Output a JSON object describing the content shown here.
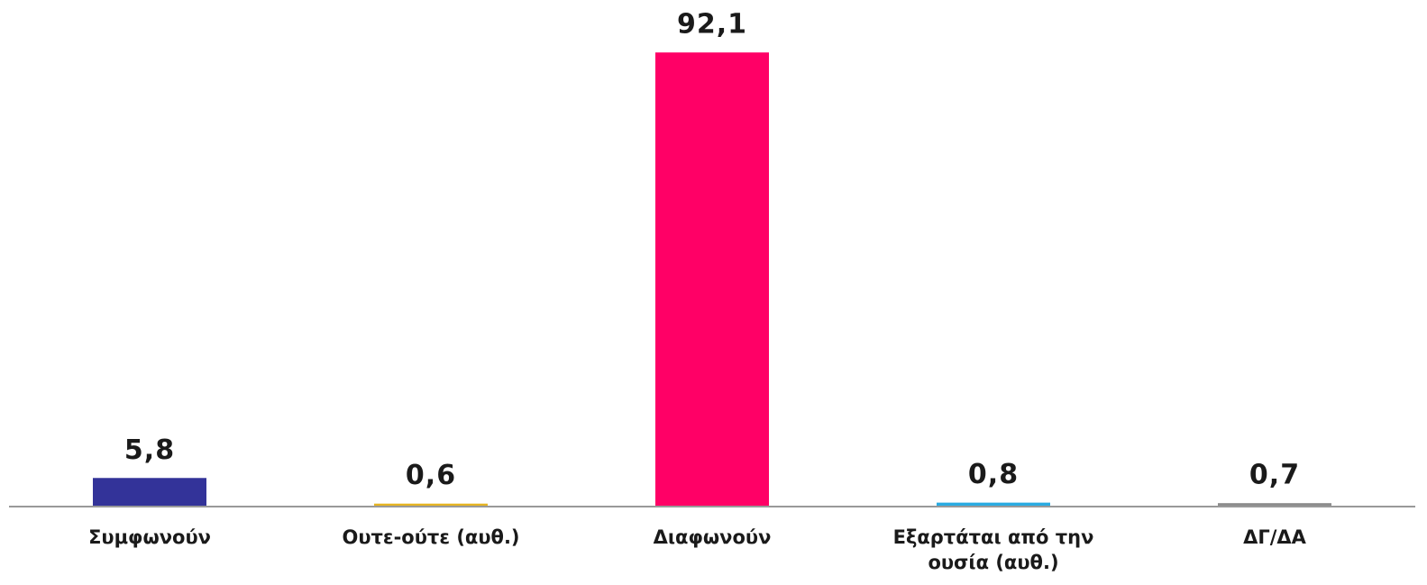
{
  "chart_data": {
    "type": "bar",
    "categories": [
      "Συμφωνούν",
      "Ουτε-ούτε (αυθ.)",
      "Διαφωνούν",
      "Εξαρτάται από την ουσία (αυθ.)",
      "ΔΓ/ΔΑ"
    ],
    "values": [
      5.8,
      0.6,
      92.1,
      0.8,
      0.7
    ],
    "value_labels": [
      "5,8",
      "0,6",
      "92,1",
      "0,8",
      "0,7"
    ],
    "colors": [
      "#333399",
      "#e6b422",
      "#ff0066",
      "#29abe2",
      "#8c8c8c"
    ],
    "ylim": [
      0,
      100
    ]
  }
}
